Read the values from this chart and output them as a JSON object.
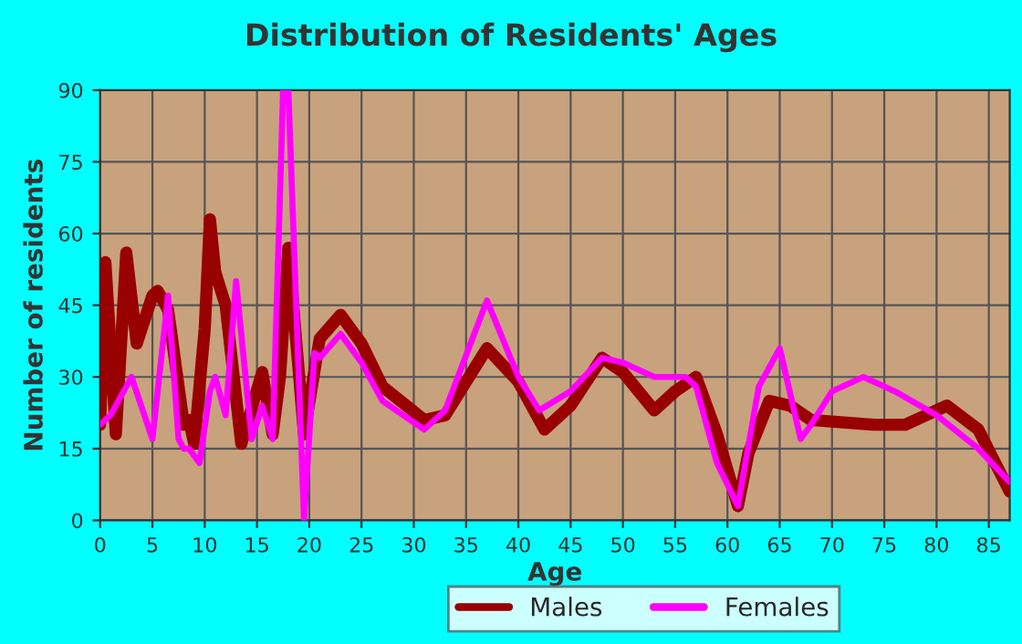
{
  "chart_data": {
    "type": "line",
    "title": "Distribution of Residents' Ages",
    "xlabel": "Age",
    "ylabel": "Number of residents",
    "xlim": [
      0,
      87
    ],
    "xticks": [
      0,
      5,
      10,
      15,
      20,
      25,
      30,
      35,
      40,
      45,
      50,
      55,
      60,
      65,
      70,
      75,
      80,
      85
    ],
    "ylim": [
      0,
      90
    ],
    "yticks": [
      0,
      15,
      30,
      45,
      60,
      75,
      90
    ],
    "grid": true,
    "legend": "bottom",
    "line_style": "solid",
    "marker": "none",
    "series": [
      {
        "name": "Males",
        "color": "#990000",
        "x": [
          0,
          0.5,
          1.5,
          2.5,
          3.5,
          5,
          5.5,
          6.5,
          8,
          8.5,
          9,
          10,
          10.5,
          11,
          12,
          13.5,
          15.5,
          16.5,
          17.2,
          18,
          19.5,
          21,
          23,
          25,
          27,
          31,
          33,
          37,
          40,
          42.5,
          45,
          48,
          50,
          53,
          55,
          57,
          59,
          61,
          62,
          64,
          66,
          68,
          74,
          77,
          81,
          84,
          87
        ],
        "values": [
          20,
          54,
          18,
          56,
          37,
          47,
          48,
          44,
          20,
          21,
          16,
          40,
          63,
          52,
          45,
          16,
          31,
          18,
          30,
          57,
          18,
          38,
          43,
          37,
          28,
          21,
          22,
          36,
          29,
          19,
          24,
          34,
          31,
          23,
          27,
          30,
          18,
          3,
          14,
          25,
          24,
          21,
          20,
          20,
          24,
          19,
          6
        ]
      },
      {
        "name": "Females",
        "color": "#ff00ff",
        "x": [
          0,
          1,
          3,
          5,
          6.5,
          7.5,
          8,
          8.5,
          9.5,
          10.5,
          11,
          12,
          13,
          14.5,
          15.5,
          16.5,
          17.5,
          18,
          19.5,
          20.5,
          21,
          23,
          25,
          27,
          31,
          33,
          37,
          40,
          42,
          45,
          48,
          50,
          53,
          56,
          57,
          59,
          61,
          63,
          65,
          67,
          68,
          70,
          73,
          76,
          80,
          84,
          87
        ],
        "values": [
          20,
          22,
          30,
          17,
          47,
          17,
          15,
          15,
          12,
          27,
          30,
          22,
          50,
          17,
          24,
          17,
          90,
          90,
          0,
          35,
          34,
          39,
          33,
          25,
          19,
          23,
          46,
          30,
          23,
          27,
          34,
          33,
          30,
          30,
          28,
          12,
          3,
          28,
          36,
          17,
          20,
          27,
          30,
          27,
          22,
          15,
          8
        ]
      }
    ]
  }
}
